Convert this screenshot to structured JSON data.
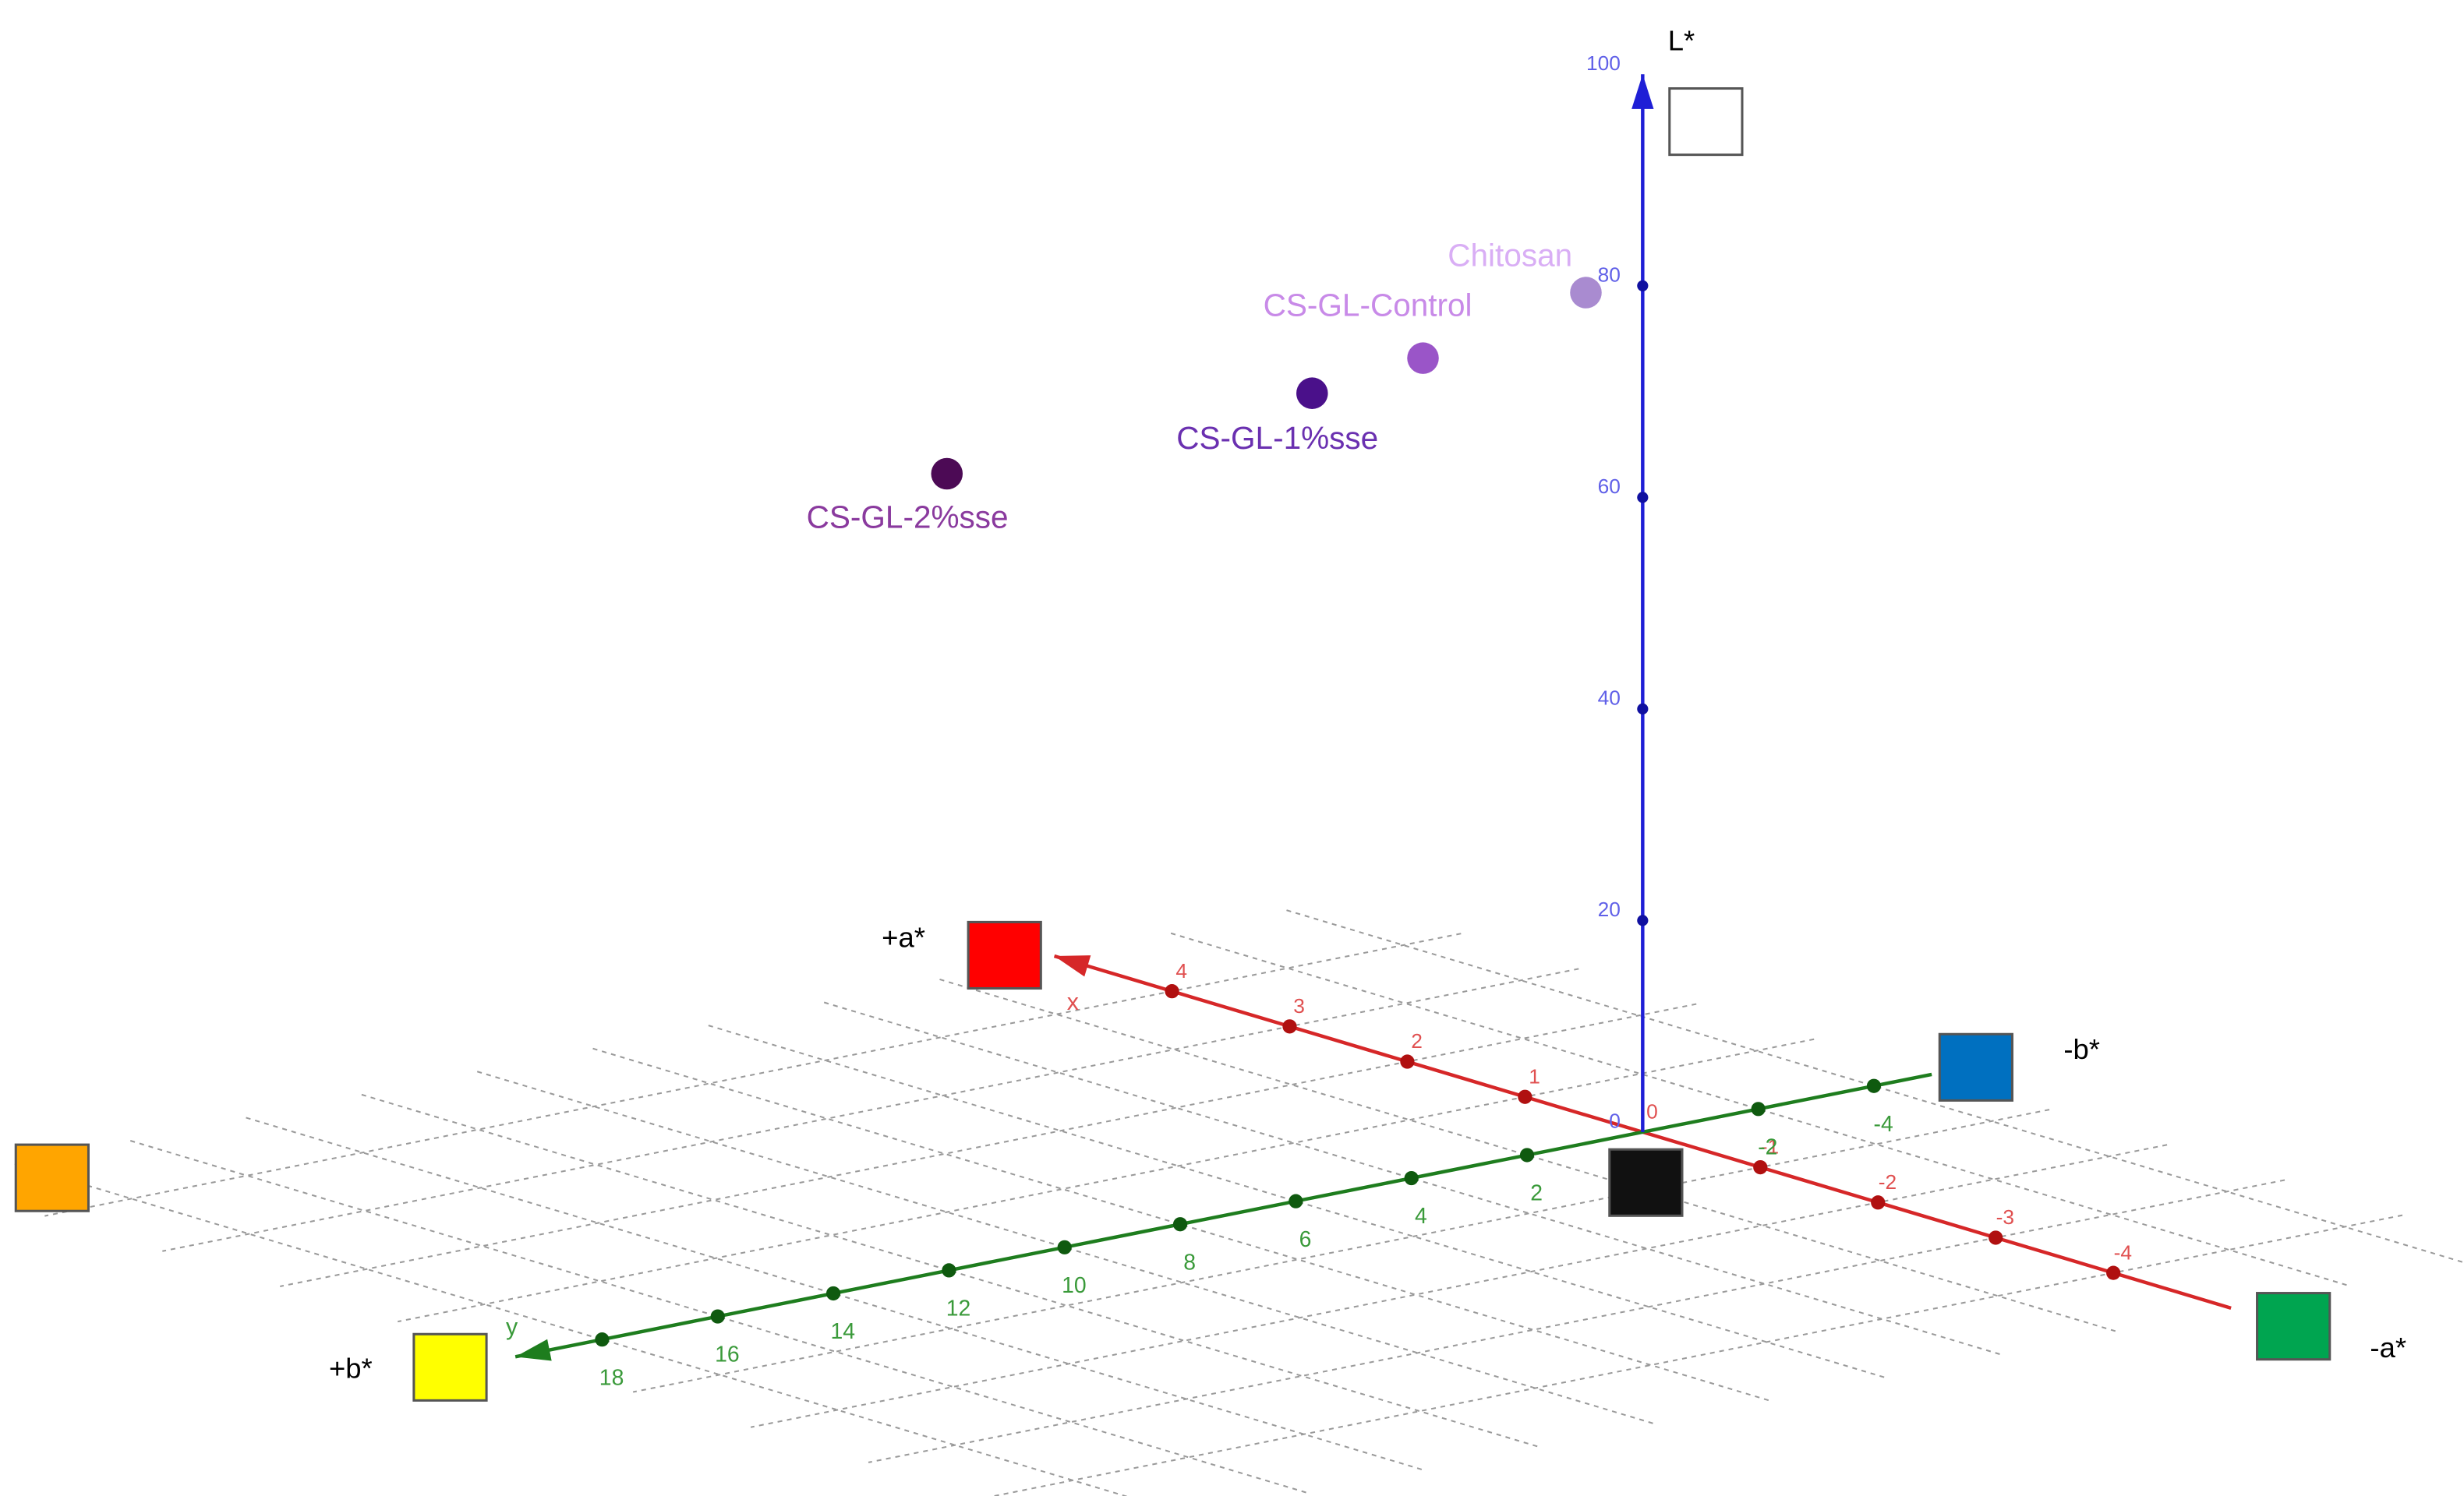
{
  "chart_data": {
    "type": "scatter3d",
    "xlabel": "x",
    "ylabel": "y",
    "zlabel": "L*",
    "xlim": [
      -5,
      5
    ],
    "ylim": [
      -5,
      19.5
    ],
    "zlim": [
      0,
      100
    ],
    "xticks": [
      -4,
      -3,
      -2,
      -1,
      0,
      1,
      2,
      3,
      4
    ],
    "yticks": [
      -4,
      -2,
      2,
      4,
      6,
      8,
      10,
      12,
      14,
      16,
      18
    ],
    "zticks": [
      0,
      20,
      40,
      60,
      80,
      100
    ],
    "axis_colors": {
      "x": "#d62728",
      "y": "#1e7d1e",
      "z": "#1f1fd6"
    },
    "tick_label_colors": {
      "x": "#e05050",
      "y": "#3a9a3a",
      "z": "#6060e8"
    },
    "grid": true,
    "series": [
      {
        "name": "Chitosan",
        "color": "#a98bd0",
        "label_color": "#d9aef5",
        "x": -0.5,
        "y": 2.0,
        "z": 83.2
      },
      {
        "name": "CS-GL-Control",
        "color": "#9a55c8",
        "label_color": "#c88ae8",
        "x": 0,
        "y": 3.8,
        "z": 77.3
      },
      {
        "name": "CS-GL-1%sse",
        "color": "#4a108a",
        "label_color": "#6a30b0",
        "x": 0.5,
        "y": 4.7,
        "z": 73.3
      },
      {
        "name": "CS-GL-2%sse",
        "color": "#4c0a55",
        "label_color": "#8a3a9e",
        "x": 1.0,
        "y": 10.0,
        "z": 69.8
      }
    ],
    "swatches": [
      {
        "label": "+a*",
        "color": "#ff0000"
      },
      {
        "label": "-a*",
        "color": "#00a550"
      },
      {
        "label": "+b*",
        "color": "#ffff00"
      },
      {
        "label": "-b*",
        "color": "#0070c0"
      },
      {
        "color": "#ffffff"
      },
      {
        "color": "#111111"
      },
      {
        "color": "#ffa500"
      }
    ]
  }
}
